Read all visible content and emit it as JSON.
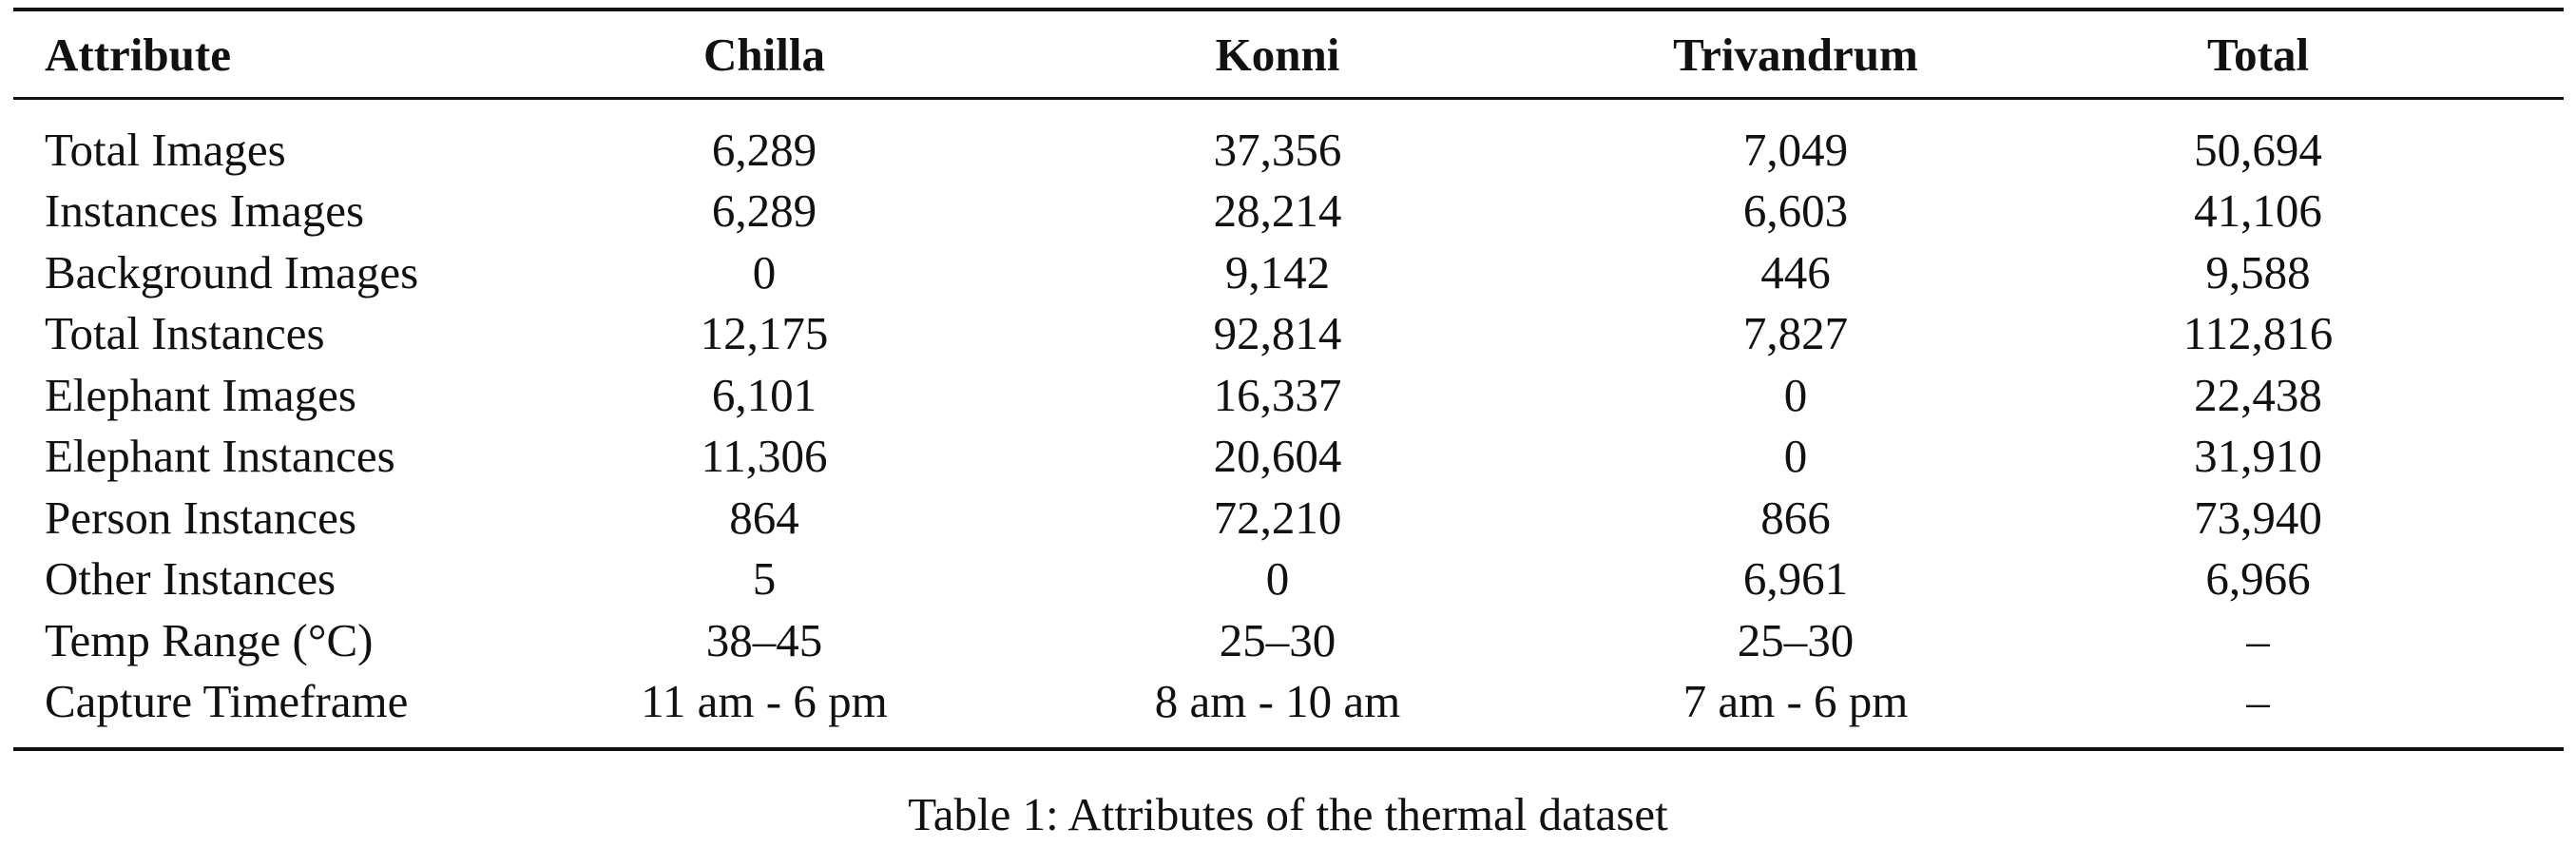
{
  "table": {
    "headers": [
      "Attribute",
      "Chilla",
      "Konni",
      "Trivandrum",
      "Total"
    ],
    "rows": [
      [
        "Total Images",
        "6,289",
        "37,356",
        "7,049",
        "50,694"
      ],
      [
        "Instances Images",
        "6,289",
        "28,214",
        "6,603",
        "41,106"
      ],
      [
        "Background Images",
        "0",
        "9,142",
        "446",
        "9,588"
      ],
      [
        "Total Instances",
        "12,175",
        "92,814",
        "7,827",
        "112,816"
      ],
      [
        "Elephant Images",
        "6,101",
        "16,337",
        "0",
        "22,438"
      ],
      [
        "Elephant Instances",
        "11,306",
        "20,604",
        "0",
        "31,910"
      ],
      [
        "Person Instances",
        "864",
        "72,210",
        "866",
        "73,940"
      ],
      [
        "Other Instances",
        "5",
        "0",
        "6,961",
        "6,966"
      ],
      [
        "Temp Range (°C)",
        "38–45",
        "25–30",
        "25–30",
        "–"
      ],
      [
        "Capture Timeframe",
        "11 am - 6 pm",
        "8 am - 10 am",
        "7 am - 6 pm",
        "–"
      ]
    ]
  },
  "caption": "Table 1: Attributes of the thermal dataset"
}
